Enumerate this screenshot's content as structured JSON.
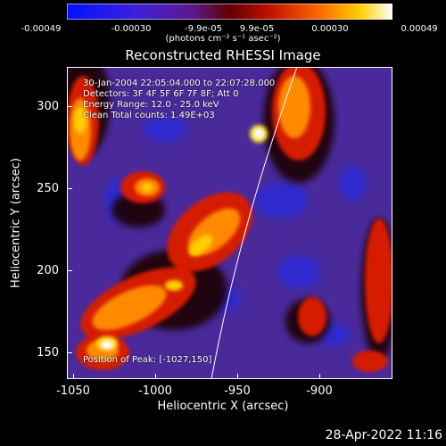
{
  "colorbar": {
    "ticks": [
      "-0.00049",
      "-0.00030",
      "-9.9e-05",
      "9.9e-05",
      "0.00030",
      "0.00049"
    ],
    "units": "(photons cm⁻² s⁻¹ asec⁻²)",
    "colors": [
      "#0011ff",
      "#5a1aa8",
      "#6a0000",
      "#d12000",
      "#ff9a00",
      "#ffffff"
    ]
  },
  "title": "Reconstructed RHESSI Image",
  "annotation": {
    "line1": "30-Jan-2004 22:05:04.000 to 22:07:28.000",
    "line2": "Detectors: 3F 4F 5F 6F 7F 8F; Att 0",
    "line3": "Energy Range: 12.0 - 25.0 keV",
    "line4": "Clean     Total counts: 1.49E+03",
    "peak": "Position of Peak: [-1027,150]"
  },
  "axes": {
    "xlabel": "Heliocentric X (arcsec)",
    "ylabel": "Heliocentric Y (arcsec)",
    "xticks": [
      "-1050",
      "-1000",
      "-950",
      "-900"
    ],
    "yticks": [
      "300",
      "250",
      "200",
      "150"
    ]
  },
  "timestamp": "28-Apr-2022 11:16"
}
